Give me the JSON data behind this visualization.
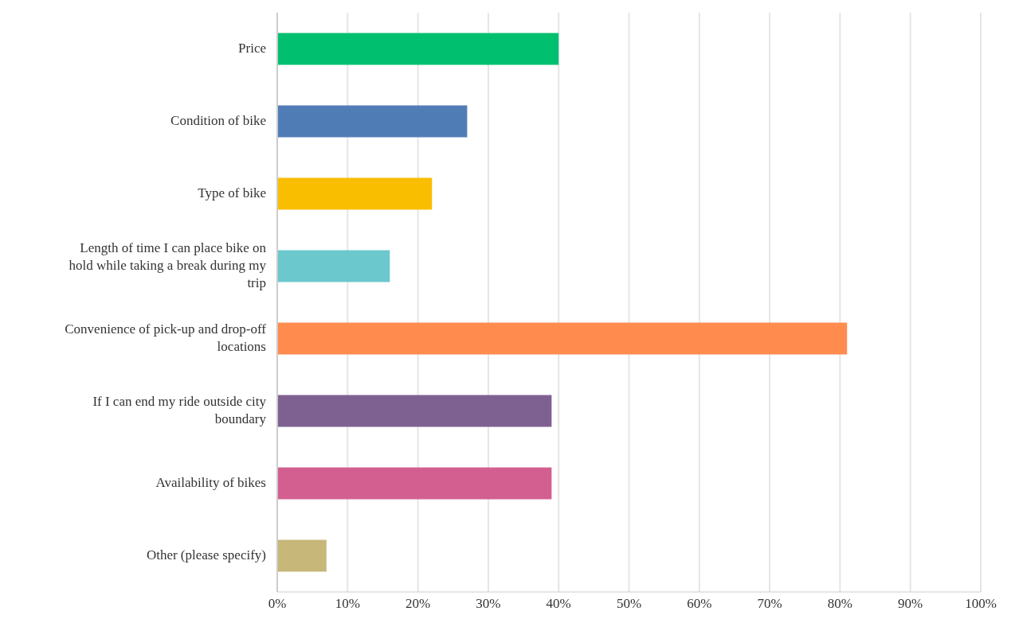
{
  "chart_data": {
    "type": "bar",
    "orientation": "horizontal",
    "categories": [
      "Price",
      "Condition of bike",
      "Type of bike",
      "Length of time I can place bike on hold while taking a break during my trip",
      "Convenience of pick-up and drop-off locations",
      "If I can end my ride outside city boundary",
      "Availability of bikes",
      "Other (please specify)"
    ],
    "values": [
      40,
      27,
      22,
      16,
      81,
      39,
      39,
      7
    ],
    "colors": [
      "#00bf6f",
      "#507cb6",
      "#f9be00",
      "#6bc8cd",
      "#ff8b4f",
      "#7f6191",
      "#d25f90",
      "#c7b879"
    ],
    "xlim": [
      0,
      100
    ],
    "xticks": [
      {
        "value": 0,
        "label": "0%"
      },
      {
        "value": 10,
        "label": "10%"
      },
      {
        "value": 20,
        "label": "20%"
      },
      {
        "value": 30,
        "label": "30%"
      },
      {
        "value": 40,
        "label": "40%"
      },
      {
        "value": 50,
        "label": "50%"
      },
      {
        "value": 60,
        "label": "60%"
      },
      {
        "value": 70,
        "label": "70%"
      },
      {
        "value": 80,
        "label": "80%"
      },
      {
        "value": 90,
        "label": "90%"
      },
      {
        "value": 100,
        "label": "100%"
      }
    ],
    "grid": "x",
    "legend": false
  }
}
